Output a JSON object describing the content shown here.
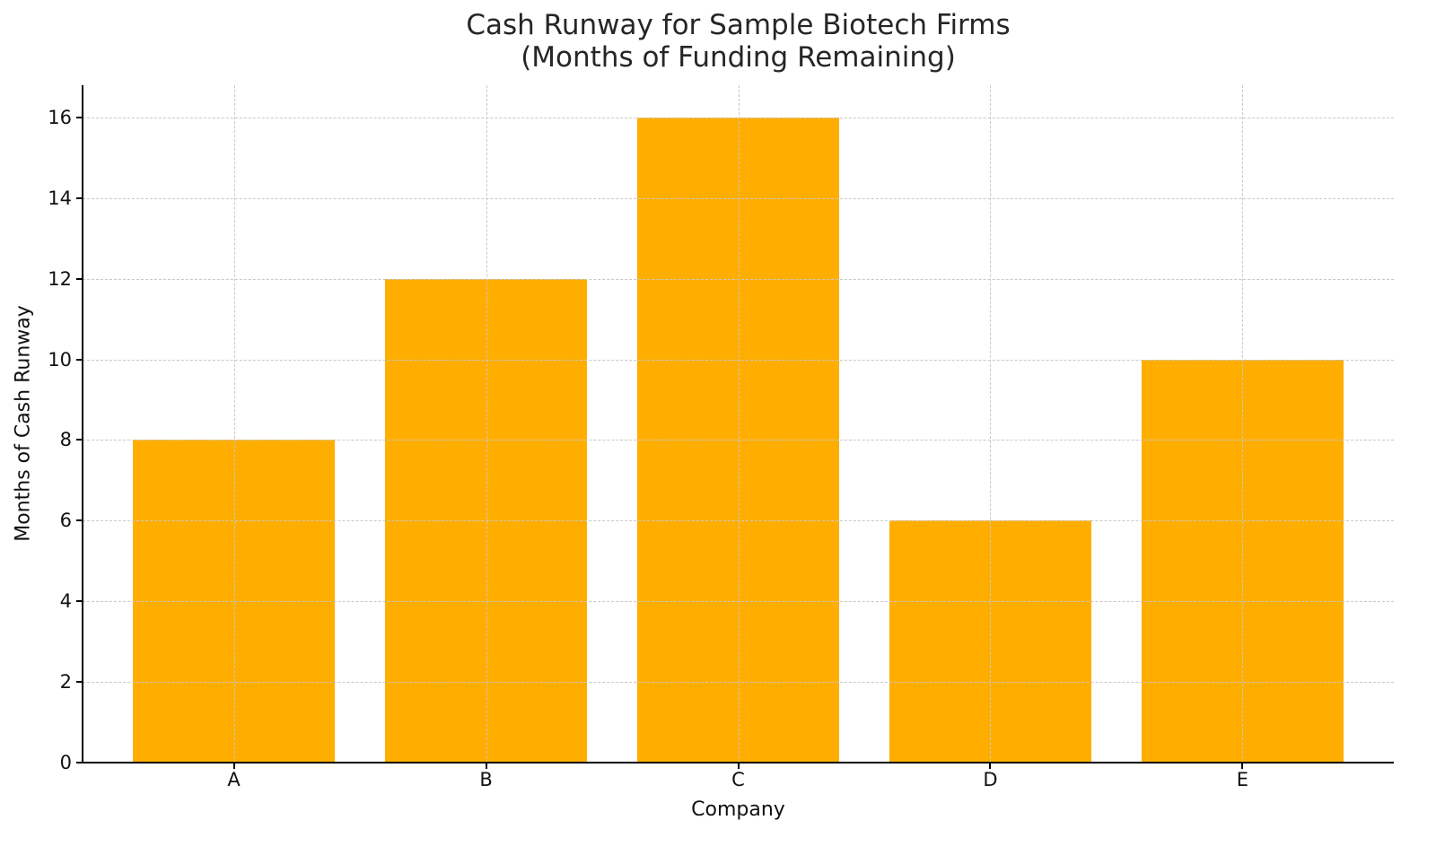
{
  "chart_data": {
    "type": "bar",
    "title": "Cash Runway for Sample Biotech Firms\n(Months of Funding Remaining)",
    "title_lines": [
      "Cash Runway for Sample Biotech Firms",
      "(Months of Funding Remaining)"
    ],
    "xlabel": "Company",
    "ylabel": "Months of Cash Runway",
    "categories": [
      "A",
      "B",
      "C",
      "D",
      "E"
    ],
    "values": [
      8,
      12,
      16,
      6,
      10
    ],
    "ylim": [
      0,
      16.8
    ],
    "yticks": [
      0,
      2,
      4,
      6,
      8,
      10,
      12,
      14,
      16
    ],
    "grid": true,
    "grid_style": "dashed",
    "legend": null,
    "bar_color": "#FFAE00"
  }
}
